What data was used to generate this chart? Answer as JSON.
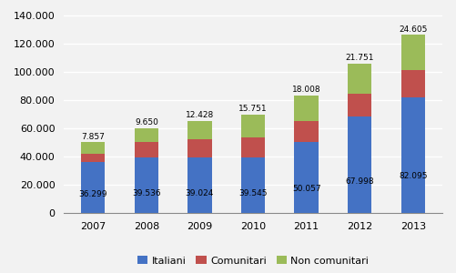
{
  "years": [
    "2007",
    "2008",
    "2009",
    "2010",
    "2011",
    "2012",
    "2013"
  ],
  "italiani": [
    36299,
    39536,
    39024,
    39545,
    50057,
    67998,
    82095
  ],
  "comunitari": [
    5844,
    10814,
    13452,
    14249,
    14935,
    16249,
    19300
  ],
  "non_comunitari": [
    7857,
    9650,
    12428,
    15751,
    18008,
    21751,
    24605
  ],
  "italiani_color": "#4472c4",
  "comunitari_color": "#c0504d",
  "non_comunitari_color": "#9bbb59",
  "yticks": [
    0,
    20000,
    40000,
    60000,
    80000,
    100000,
    120000,
    140000
  ],
  "ylim": [
    0,
    145000
  ],
  "bar_width": 0.45,
  "legend_labels": [
    "Italiani",
    "Comunitari",
    "Non comunitari"
  ],
  "background_color": "#f2f2f2",
  "plot_background": "#f2f2f2",
  "grid_color": "#ffffff",
  "label_fontsize": 6.5,
  "tick_fontsize": 8,
  "legend_fontsize": 8
}
